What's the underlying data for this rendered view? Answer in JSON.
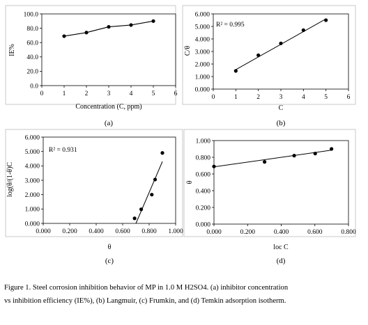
{
  "chart_data": [
    {
      "id": "a",
      "type": "line",
      "panel_label": "(a)",
      "xlabel": "Concentration (C, ppm)",
      "ylabel": "IE%",
      "xlim": [
        0,
        6
      ],
      "ylim": [
        0,
        100
      ],
      "xticks": [
        0,
        1,
        2,
        3,
        4,
        5,
        6
      ],
      "yticks": [
        0,
        20,
        40,
        60,
        80,
        100
      ],
      "x_tick_labels": [
        "0",
        "1",
        "2",
        "3",
        "4",
        "5",
        "6"
      ],
      "y_tick_labels": [
        "0.0",
        "20.0",
        "40.0",
        "60.0",
        "80.0",
        "100.0"
      ],
      "series": [
        {
          "x": [
            1,
            2,
            3,
            4,
            5
          ],
          "values": [
            69,
            74,
            82,
            84.5,
            90
          ]
        }
      ],
      "annotation": "",
      "grid": false
    },
    {
      "id": "b",
      "type": "scatter",
      "panel_label": "(b)",
      "xlabel": "C",
      "ylabel": "C/θ",
      "xlim": [
        0,
        6
      ],
      "ylim": [
        0,
        6
      ],
      "xticks": [
        0,
        1,
        2,
        3,
        4,
        5,
        6
      ],
      "yticks": [
        0,
        1,
        2,
        3,
        4,
        5,
        6
      ],
      "x_tick_labels": [
        "0",
        "1",
        "2",
        "3",
        "4",
        "5",
        "6"
      ],
      "y_tick_labels": [
        "0.000",
        "1.000",
        "2.000",
        "3.000",
        "4.000",
        "5.000",
        "6.000"
      ],
      "series": [
        {
          "x": [
            1,
            2,
            3,
            4,
            5
          ],
          "values": [
            1.45,
            2.7,
            3.65,
            4.7,
            5.5
          ]
        }
      ],
      "trendline": {
        "x": [
          1,
          5
        ],
        "values": [
          1.55,
          5.6
        ]
      },
      "annotation": "R² = 0.995",
      "grid": false
    },
    {
      "id": "c",
      "type": "scatter",
      "panel_label": "(c)",
      "xlabel": "θ",
      "ylabel": "log(θ/(1-θ)C",
      "xlim": [
        0,
        1
      ],
      "ylim": [
        0,
        6
      ],
      "xticks": [
        0,
        0.2,
        0.4,
        0.6,
        0.8,
        1
      ],
      "yticks": [
        0,
        1,
        2,
        3,
        4,
        5,
        6
      ],
      "x_tick_labels": [
        "0.000",
        "0.200",
        "0.400",
        "0.600",
        "0.800",
        "1.000"
      ],
      "y_tick_labels": [
        "0.000",
        "1.000",
        "2.000",
        "3.000",
        "4.000",
        "5.000",
        "6.000"
      ],
      "series": [
        {
          "x": [
            0.69,
            0.74,
            0.82,
            0.845,
            0.9
          ],
          "values": [
            0.35,
            0.98,
            2.0,
            3.05,
            4.9
          ]
        }
      ],
      "trendline": {
        "x": [
          0.7,
          0.9
        ],
        "values": [
          0,
          4.3
        ]
      },
      "annotation": "R² = 0.931",
      "grid": false
    },
    {
      "id": "d",
      "type": "scatter",
      "panel_label": "(d)",
      "xlabel": "loc C",
      "ylabel": "θ",
      "xlim": [
        0,
        0.8
      ],
      "ylim": [
        0,
        1
      ],
      "xticks": [
        0,
        0.2,
        0.4,
        0.6,
        0.8
      ],
      "yticks": [
        0,
        0.2,
        0.4,
        0.6,
        0.8,
        1
      ],
      "x_tick_labels": [
        "0.000",
        "0.200",
        "0.400",
        "0.600",
        "0.800"
      ],
      "y_tick_labels": [
        "0.000",
        "0.200",
        "0.400",
        "0.600",
        "0.800",
        "1.000"
      ],
      "series": [
        {
          "x": [
            0,
            0.301,
            0.477,
            0.602,
            0.699
          ],
          "values": [
            0.69,
            0.745,
            0.82,
            0.845,
            0.9
          ]
        }
      ],
      "trendline": {
        "x": [
          0,
          0.699
        ],
        "values": [
          0.685,
          0.885
        ]
      },
      "annotation": "",
      "grid": false
    }
  ],
  "caption": {
    "line1": "Figure 1. Steel corrosion inhibition behavior of MP in 1.0 M H2SO4. (a) inhibitor concentration",
    "line2": "vs inhibition efficiency (IE%), (b) Langmuir, (c) Frumkin, and (d) Temkin adsorption isotherm."
  }
}
